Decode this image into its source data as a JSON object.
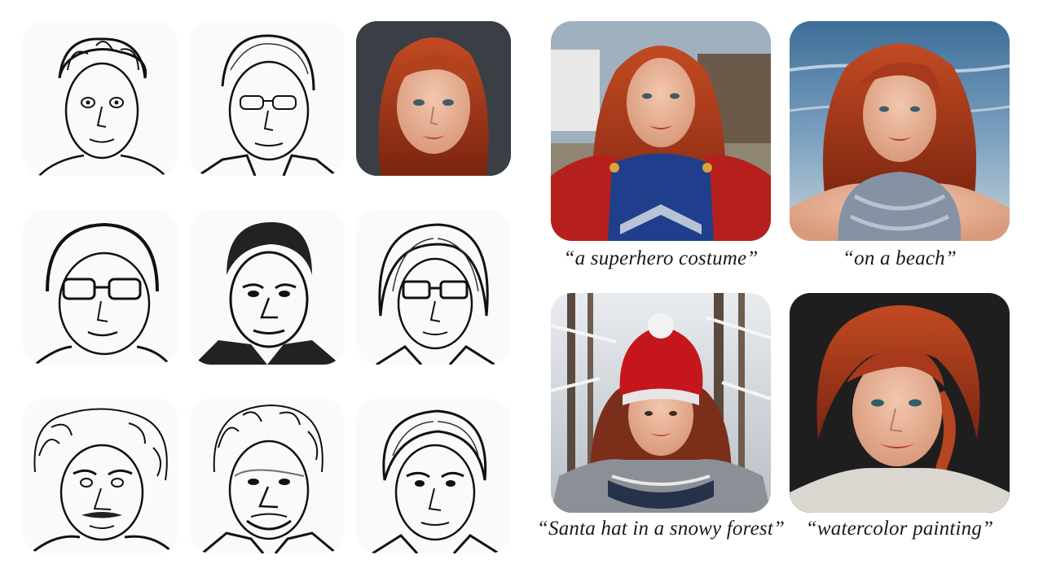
{
  "captions": {
    "superhero": "“a superhero costume”",
    "beach": "“on a beach”",
    "santa": "“Santa hat in a snowy forest”",
    "watercolor": "“watercolor painting”"
  },
  "colors": {
    "hair_red": "#a8391c",
    "skin": "#e8b49a",
    "sketch_ink": "#111111",
    "superhero_blue": "#1f3f8c",
    "cape_red": "#b5201c",
    "sea_blue": "#4f7fa8",
    "hat_red": "#c4161c",
    "snow_gray": "#dcdfe3",
    "watercolor_bg": "#1e1e1e"
  }
}
